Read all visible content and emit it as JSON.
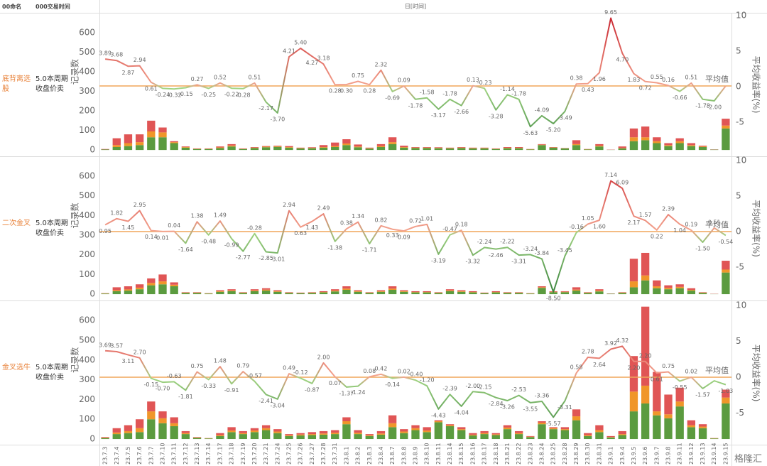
{
  "header": {
    "name_col": "00命名",
    "time_col": "000交易时间",
    "x_title": "日[时间]",
    "watermark": "格隆汇"
  },
  "chart_data": [
    {
      "type": "combo",
      "row_label": "底背离选股",
      "strategy": "5.0本周期收盘价卖",
      "ylabel": "记录数",
      "y2label": "平均收益率(%)",
      "ylim": [
        -25,
        695
      ],
      "yticks": [
        0,
        100,
        200,
        300,
        400,
        500,
        600
      ],
      "y2lim": [
        -9.6,
        10.2
      ],
      "y2ticks": [
        -5,
        0,
        5,
        10
      ],
      "reference_line": {
        "label": "平均值",
        "value": 0.1,
        "color": "#f0a65a",
        "axis": "y2"
      },
      "line_color_scale": [
        "#2e7a35",
        "#a3d584",
        "#f4a58f",
        "#c71f2b"
      ],
      "series": [
        {
          "color": "#5b9b3f",
          "values": [
            3,
            15,
            20,
            25,
            65,
            65,
            35,
            12,
            5,
            5,
            10,
            18,
            5,
            10,
            14,
            16,
            12,
            8,
            9,
            12,
            15,
            25,
            14,
            7,
            15,
            30,
            12,
            10,
            10,
            9,
            8,
            10,
            8,
            8,
            5,
            9,
            9,
            3,
            25,
            12,
            8,
            25,
            3,
            18,
            1,
            8,
            45,
            50,
            35,
            20,
            35,
            20,
            15,
            2,
            110
          ]
        },
        {
          "color": "#f0962a",
          "values": [
            0,
            10,
            15,
            15,
            30,
            25,
            5,
            3,
            1,
            1,
            3,
            5,
            1,
            2,
            3,
            3,
            3,
            2,
            2,
            3,
            5,
            8,
            4,
            2,
            5,
            10,
            3,
            2,
            2,
            2,
            2,
            2,
            2,
            2,
            1,
            2,
            2,
            1,
            2,
            1,
            1,
            5,
            1,
            4,
            0,
            2,
            20,
            15,
            10,
            5,
            10,
            5,
            3,
            0,
            15
          ]
        },
        {
          "color": "#e05555",
          "values": [
            2,
            35,
            45,
            40,
            55,
            25,
            5,
            3,
            2,
            2,
            5,
            7,
            2,
            3,
            3,
            3,
            5,
            2,
            3,
            10,
            18,
            22,
            10,
            3,
            10,
            25,
            7,
            3,
            3,
            3,
            2,
            3,
            2,
            2,
            2,
            4,
            4,
            1,
            3,
            2,
            1,
            20,
            1,
            8,
            1,
            8,
            45,
            55,
            20,
            10,
            15,
            10,
            4,
            1,
            35
          ]
        },
        {
          "type": "line",
          "axis": "y2",
          "values": [
            3.89,
            3.68,
            2.87,
            2.94,
            0.61,
            -0.24,
            -0.32,
            -0.15,
            0.27,
            -0.25,
            0.52,
            -0.22,
            -0.28,
            0.51,
            -2.17,
            -3.7,
            4.21,
            5.4,
            4.27,
            3.18,
            0.28,
            0.3,
            0.75,
            0.28,
            2.32,
            -0.69,
            0.09,
            -1.78,
            -1.58,
            -3.17,
            -1.78,
            -2.66,
            0.13,
            -0.23,
            -3.28,
            -1.14,
            -1.78,
            -5.63,
            -4.09,
            -5.2,
            -3.49,
            0.38,
            0.43,
            1.96,
            9.65,
            4.7,
            1.83,
            0.72,
            0.55,
            0.16,
            -0.66,
            0.51,
            -1.78,
            -2.0,
            0.1
          ],
          "value_labels": [
            "3.89",
            "3.68",
            "2.87",
            "2.94",
            "0.61",
            "-0.24",
            "-0.32",
            "-0.15",
            "0.27",
            "-0.25",
            "0.52",
            "-0.22",
            "-0.28",
            "0.51",
            "-2.17",
            "-3.70",
            "4.21",
            "5.40",
            "4.27",
            "3.18",
            "0.28",
            "0.30",
            "0.75",
            "0.28",
            "2.32",
            "-0.69",
            "0.09",
            "-1.78",
            "-1.58",
            "-3.17",
            "-1.78",
            "-2.66",
            "0.13",
            "-0.23",
            "-3.28",
            "-1.14",
            "-1.78",
            "-5.63",
            "-4.09",
            "-5.20",
            "-3.49",
            "0.38",
            "0.43",
            "1.96",
            "9.65",
            "4.70",
            "1.83",
            "0.72",
            "0.55",
            "0.16",
            "-0.66",
            "0.51",
            "-1.78",
            "-2.00",
            null
          ]
        }
      ]
    },
    {
      "type": "combo",
      "row_label": "二次金叉",
      "strategy": "5.0本周期收盘价卖",
      "ylabel": "记录数",
      "y2label": "平均收益率(%)",
      "ylim": [
        -25,
        694
      ],
      "yticks": [
        0,
        100,
        200,
        300,
        400,
        500,
        600
      ],
      "y2lim": [
        -9.5,
        10.4
      ],
      "y2ticks": [
        -5,
        0,
        5,
        10
      ],
      "reference_line": {
        "label": "平均值",
        "value": 0,
        "color": "#f0a65a",
        "axis": "y2"
      },
      "line_color_scale": [
        "#2e7a35",
        "#a3d584",
        "#f4a58f",
        "#c71f2b"
      ],
      "series": [
        {
          "color": "#5b9b3f",
          "values": [
            3,
            15,
            18,
            25,
            45,
            50,
            40,
            6,
            6,
            3,
            12,
            15,
            6,
            15,
            18,
            12,
            6,
            5,
            6,
            9,
            14,
            22,
            12,
            6,
            12,
            22,
            12,
            9,
            9,
            6,
            15,
            12,
            9,
            5,
            9,
            6,
            6,
            3,
            32,
            10,
            10,
            18,
            6,
            14,
            2,
            6,
            35,
            70,
            30,
            25,
            30,
            18,
            6,
            1,
            110
          ]
        },
        {
          "color": "#f0962a",
          "values": [
            1,
            5,
            6,
            8,
            12,
            15,
            8,
            2,
            2,
            1,
            3,
            4,
            2,
            4,
            5,
            3,
            2,
            1,
            2,
            2,
            4,
            6,
            3,
            2,
            3,
            6,
            3,
            2,
            2,
            2,
            4,
            3,
            2,
            1,
            2,
            2,
            2,
            1,
            3,
            2,
            2,
            5,
            2,
            4,
            0,
            2,
            30,
            25,
            10,
            7,
            7,
            4,
            2,
            0,
            15
          ]
        },
        {
          "color": "#e05555",
          "values": [
            1,
            15,
            16,
            17,
            23,
            35,
            12,
            2,
            2,
            1,
            5,
            6,
            2,
            6,
            7,
            5,
            2,
            2,
            2,
            4,
            7,
            12,
            5,
            2,
            5,
            12,
            5,
            4,
            4,
            2,
            6,
            5,
            4,
            2,
            4,
            2,
            2,
            1,
            5,
            3,
            3,
            12,
            2,
            7,
            1,
            2,
            115,
            115,
            30,
            13,
            13,
            8,
            2,
            1,
            45
          ]
        },
        {
          "type": "line",
          "axis": "y2",
          "values": [
            0.95,
            1.82,
            1.45,
            2.95,
            0.14,
            0.01,
            0.04,
            -1.64,
            1.38,
            -0.48,
            1.49,
            -0.99,
            -2.77,
            -0.28,
            -2.85,
            -3.01,
            2.94,
            0.63,
            1.43,
            2.49,
            -1.38,
            0.38,
            1.34,
            -1.71,
            0.82,
            0.33,
            0.09,
            0.72,
            1.01,
            -3.19,
            -0.47,
            0.18,
            -3.32,
            -2.24,
            -2.46,
            -2.22,
            -3.31,
            -3.24,
            -3.84,
            -8.5,
            -3.45,
            -0.16,
            1.05,
            1.6,
            7.14,
            6.09,
            2.17,
            1.57,
            0.22,
            2.39,
            1.04,
            0.19,
            -1.5,
            0.51,
            -0.54
          ],
          "value_labels": [
            "0.95",
            "1.82",
            "1.45",
            "2.95",
            "0.14",
            "0.01",
            "0.04",
            "-1.64",
            "1.38",
            "-0.48",
            "1.49",
            "-0.99",
            "-2.77",
            "-0.28",
            "-2.85",
            "-3.01",
            "2.94",
            "0.63",
            "1.43",
            "2.49",
            "-1.38",
            "0.38",
            "1.34",
            "-1.71",
            "0.82",
            "0.33",
            "0.09",
            "0.72",
            "1.01",
            "-3.19",
            "-0.47",
            "0.18",
            "-3.32",
            "-2.24",
            "-2.46",
            "-2.22",
            "-3.31",
            "-3.24",
            "-3.84",
            "-8.50",
            "-3.45",
            "-0.16",
            "1.05",
            "1.60",
            "7.14",
            "6.09",
            "2.17",
            "1.57",
            "0.22",
            "2.39",
            "1.04",
            "0.19",
            "-1.50",
            "0.51",
            "-0.54"
          ]
        }
      ]
    },
    {
      "type": "combo",
      "row_label": "金叉选牛",
      "strategy": "5.0本周期收盘价卖",
      "ylabel": "记录数",
      "y2label": "平均收益率(%)",
      "ylim": [
        -25,
        694
      ],
      "yticks": [
        0,
        100,
        200,
        300,
        400,
        500,
        600
      ],
      "y2lim": [
        -9.3,
        10.5
      ],
      "y2ticks": [
        -5,
        0,
        5,
        10
      ],
      "reference_line": {
        "label": "平均值",
        "value": 0,
        "color": "#f0a65a",
        "axis": "y2"
      },
      "line_color_scale": [
        "#2e7a35",
        "#a3d584",
        "#f4a58f",
        "#c71f2b"
      ],
      "categories": [
        "23.7.3",
        "23.7.4",
        "23.7.5",
        "23.7.6",
        "23.7.7",
        "23.7.10",
        "23.7.11",
        "23.7.12",
        "23.7.13",
        "23.7.14",
        "23.7.17",
        "23.7.18",
        "23.7.19",
        "23.7.20",
        "23.7.21",
        "23.7.24",
        "23.7.25",
        "23.7.26",
        "23.7.27",
        "23.7.28",
        "23.7.31",
        "23.8.1",
        "23.8.2",
        "23.8.3",
        "23.8.4",
        "23.8.7",
        "23.8.8",
        "23.8.9",
        "23.8.10",
        "23.8.11",
        "23.8.14",
        "23.8.15",
        "23.8.16",
        "23.8.17",
        "23.8.18",
        "23.8.21",
        "23.8.22",
        "23.8.23",
        "23.8.24",
        "23.8.25",
        "23.8.28",
        "23.8.29",
        "23.8.30",
        "23.8.31",
        "23.9.1",
        "23.9.4",
        "23.9.5",
        "23.9.6",
        "23.9.7",
        "23.9.8",
        "23.9.11",
        "23.9.12",
        "23.9.13",
        "23.9.14",
        "23.9.15"
      ],
      "series": [
        {
          "color": "#5b9b3f",
          "values": [
            5,
            25,
            30,
            35,
            100,
            80,
            65,
            25,
            6,
            3,
            15,
            35,
            25,
            35,
            45,
            30,
            15,
            18,
            20,
            22,
            25,
            75,
            25,
            15,
            22,
            60,
            30,
            45,
            35,
            85,
            65,
            45,
            18,
            25,
            20,
            50,
            25,
            10,
            75,
            50,
            45,
            95,
            15,
            35,
            8,
            20,
            140,
            180,
            120,
            105,
            165,
            60,
            55,
            3,
            180
          ]
        },
        {
          "color": "#f0962a",
          "values": [
            2,
            8,
            10,
            20,
            40,
            25,
            15,
            5,
            2,
            1,
            5,
            8,
            5,
            8,
            10,
            8,
            4,
            5,
            5,
            6,
            7,
            15,
            7,
            4,
            6,
            20,
            8,
            10,
            8,
            5,
            5,
            5,
            4,
            5,
            4,
            8,
            5,
            2,
            8,
            5,
            5,
            20,
            5,
            10,
            2,
            5,
            100,
            90,
            20,
            20,
            25,
            10,
            8,
            1,
            30
          ]
        },
        {
          "color": "#e05555",
          "values": [
            3,
            22,
            30,
            45,
            50,
            35,
            30,
            10,
            2,
            1,
            10,
            17,
            10,
            12,
            15,
            12,
            6,
            7,
            10,
            12,
            13,
            20,
            13,
            6,
            12,
            40,
            12,
            15,
            17,
            5,
            5,
            10,
            8,
            10,
            6,
            12,
            10,
            3,
            7,
            5,
            10,
            35,
            10,
            25,
            5,
            15,
            180,
            400,
            200,
            100,
            70,
            25,
            12,
            1,
            40
          ]
        },
        {
          "type": "line",
          "axis": "y2",
          "values": [
            3.69,
            3.57,
            3.11,
            2.7,
            -0.15,
            -0.7,
            -0.63,
            -1.81,
            0.75,
            -0.33,
            1.48,
            -0.91,
            0.79,
            -0.57,
            -2.41,
            -3.04,
            0.49,
            -0.12,
            -0.87,
            2.0,
            0.07,
            -1.37,
            -1.24,
            0.08,
            0.42,
            -0.14,
            0.02,
            -0.4,
            -1.2,
            -4.43,
            -2.39,
            -4.04,
            -2.0,
            -2.15,
            -2.84,
            -3.26,
            -2.53,
            -3.55,
            -3.36,
            -5.57,
            -3.31,
            0.58,
            2.78,
            2.64,
            3.92,
            4.32,
            2.2,
            2.2,
            0.61,
            0.75,
            -0.55,
            0.02,
            -1.57,
            -0.5,
            -1.03
          ],
          "value_labels": [
            "3.69",
            "3.57",
            "3.11",
            "2.70",
            "-0.15",
            "-0.70",
            "-0.63",
            "-1.81",
            "0.75",
            "-0.33",
            "1.48",
            "-0.91",
            "0.79",
            "-0.57",
            "-2.41",
            "-3.04",
            "0.49",
            "-0.12",
            "-0.87",
            "2.00",
            "0.07",
            "-1.37",
            "-1.24",
            "0.08",
            "0.42",
            "-0.14",
            "0.02",
            "-0.40",
            "-1.20",
            "-4.43",
            "-2.39",
            "-4.04",
            "-2.00",
            "-2.15",
            "-2.84",
            "-3.26",
            "-2.53",
            "-3.55",
            "-3.36",
            "-5.57",
            "-3.31",
            "0.58",
            "2.78",
            "2.64",
            "3.92",
            "4.32",
            "2.20",
            "2.20",
            "0.61",
            "0.75",
            "-0.55",
            "0.02",
            "-1.57",
            null,
            "-1.03"
          ]
        }
      ]
    }
  ]
}
